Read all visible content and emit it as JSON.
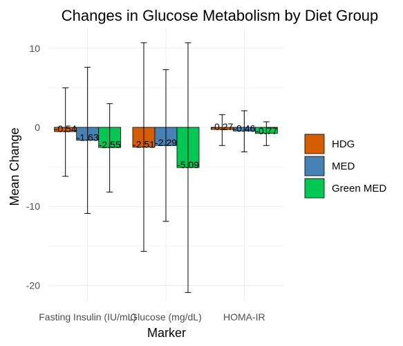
{
  "chart_data": {
    "type": "bar",
    "title": "Changes in Glucose Metabolism by Diet Group",
    "xlabel": "Marker",
    "ylabel": "Mean Change",
    "categories": [
      "Fasting Insulin (IU/mL)",
      "Glucose (mg/dL)",
      "HOMA-IR"
    ],
    "series": [
      {
        "name": "HDG",
        "color": "#D55E00",
        "values": [
          -0.54,
          -2.51,
          -0.27
        ],
        "labels": [
          "-0.54",
          "-2.51",
          "-0.27"
        ],
        "err_low": [
          -6.2,
          -15.7,
          -2.3
        ],
        "err_high": [
          5.0,
          10.7,
          1.6
        ]
      },
      {
        "name": "MED",
        "color": "#4682B4",
        "values": [
          -1.63,
          -2.29,
          -0.46
        ],
        "labels": [
          "-1.63",
          "-2.29",
          "-0.46"
        ],
        "err_low": [
          -10.9,
          -11.9,
          -3.1
        ],
        "err_high": [
          7.6,
          7.3,
          2.1
        ]
      },
      {
        "name": "Green MED",
        "color": "#00C853",
        "values": [
          -2.55,
          -5.09,
          -0.77
        ],
        "labels": [
          "-2.55",
          "-5.09",
          "-0.77"
        ],
        "err_low": [
          -8.2,
          -20.9,
          -2.3
        ],
        "err_high": [
          3.0,
          10.7,
          0.7
        ]
      }
    ],
    "yticks": [
      10,
      0,
      -10,
      -20
    ],
    "ylim": [
      -22,
      12
    ],
    "grid": true,
    "legend_position": "right"
  }
}
